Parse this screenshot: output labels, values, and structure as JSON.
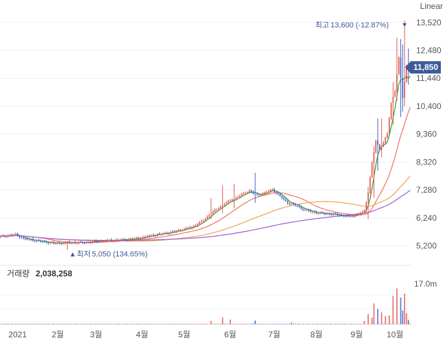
{
  "header": {
    "title_fragment": "",
    "scale_mode": "Linear"
  },
  "annotations": {
    "high_label": "최고",
    "high_value": "13,600 (-12.87%)",
    "low_label": "최저",
    "low_value": "5,050 (134.65%)",
    "current_price": "11,850"
  },
  "volume_panel": {
    "label": "거래량",
    "value": "2,038,258",
    "axis_label": "17.0m"
  },
  "colors": {
    "up": "#e2574c",
    "down": "#3d63c9",
    "ma5": "#2e9c3a",
    "ma20": "#f07060",
    "ma60": "#f0a050",
    "ma120": "#9b5cd6",
    "current_badge": "#3d5a99"
  },
  "chart_data": {
    "type": "candlestick",
    "title": "",
    "y_axis_ticks": [
      13520,
      12480,
      11440,
      10400,
      9360,
      8320,
      7280,
      6240,
      5200
    ],
    "y_axis_tick_labels": [
      "13,520",
      "12,480",
      "11,440",
      "10,400",
      "9,360",
      "8,320",
      "7,280",
      "6,240",
      "5,200"
    ],
    "ylim": [
      4960,
      14000
    ],
    "x_tick_labels": [
      "2021",
      "2월",
      "3월",
      "4월",
      "5월",
      "6월",
      "7월",
      "8월",
      "9월",
      "10월"
    ],
    "x_tick_index": [
      9,
      30,
      50,
      74,
      96,
      120,
      143,
      165,
      186,
      206
    ],
    "num_days": 215,
    "price_anchors": [
      [
        0,
        5550
      ],
      [
        8,
        5620
      ],
      [
        12,
        5470
      ],
      [
        20,
        5380
      ],
      [
        28,
        5300
      ],
      [
        36,
        5320
      ],
      [
        44,
        5330
      ],
      [
        52,
        5380
      ],
      [
        60,
        5410
      ],
      [
        70,
        5460
      ],
      [
        80,
        5600
      ],
      [
        90,
        5720
      ],
      [
        100,
        5900
      ],
      [
        106,
        6150
      ],
      [
        110,
        6420
      ],
      [
        114,
        6620
      ],
      [
        118,
        6820
      ],
      [
        122,
        6950
      ],
      [
        126,
        7120
      ],
      [
        130,
        7250
      ],
      [
        134,
        7080
      ],
      [
        138,
        7180
      ],
      [
        142,
        7300
      ],
      [
        146,
        7050
      ],
      [
        150,
        6800
      ],
      [
        154,
        6720
      ],
      [
        158,
        6560
      ],
      [
        162,
        6480
      ],
      [
        166,
        6420
      ],
      [
        170,
        6400
      ],
      [
        174,
        6380
      ],
      [
        178,
        6330
      ],
      [
        182,
        6300
      ],
      [
        186,
        6360
      ],
      [
        190,
        6500
      ],
      [
        192,
        7200
      ],
      [
        194,
        8300
      ],
      [
        196,
        9100
      ],
      [
        198,
        8800
      ],
      [
        200,
        9050
      ],
      [
        202,
        9400
      ],
      [
        204,
        10500
      ],
      [
        206,
        11000
      ],
      [
        208,
        12200
      ],
      [
        210,
        10700
      ],
      [
        212,
        11900
      ],
      [
        214,
        11850
      ]
    ],
    "highlight_bars": [
      {
        "i": 110,
        "high": 6980,
        "low": 6200
      },
      {
        "i": 116,
        "high": 7450,
        "low": 6420
      },
      {
        "i": 122,
        "high": 7500,
        "low": 6600
      },
      {
        "i": 133,
        "high": 7920,
        "low": 6800
      },
      {
        "i": 192,
        "high": 7400,
        "low": 6200
      },
      {
        "i": 195,
        "high": 8900,
        "low": 7000
      },
      {
        "i": 197,
        "high": 9950,
        "low": 8000
      },
      {
        "i": 199,
        "high": 9950,
        "low": 8500
      },
      {
        "i": 205,
        "high": 11300,
        "low": 9700
      },
      {
        "i": 207,
        "high": 12950,
        "low": 10600
      },
      {
        "i": 209,
        "high": 12900,
        "low": 10000
      },
      {
        "i": 210,
        "high": 12700,
        "low": 10200
      },
      {
        "i": 211,
        "high": 13600,
        "low": 10400
      },
      {
        "i": 213,
        "high": 12550,
        "low": 11200
      }
    ],
    "high": {
      "index": 211,
      "value": 13600
    },
    "low": {
      "index": 35,
      "value": 5050
    },
    "current": 11850,
    "moving_averages": [
      {
        "name": "MA5",
        "period": 5
      },
      {
        "name": "MA20",
        "period": 20
      },
      {
        "name": "MA60",
        "period": 60
      },
      {
        "name": "MA120",
        "period": 120
      }
    ],
    "volume": {
      "max": 17000000,
      "spikes": [
        {
          "i": 110,
          "v": 1500000
        },
        {
          "i": 116,
          "v": 3200000
        },
        {
          "i": 120,
          "v": 2200000
        },
        {
          "i": 133,
          "v": 1800000
        },
        {
          "i": 152,
          "v": 900000
        },
        {
          "i": 190,
          "v": 1600000
        },
        {
          "i": 192,
          "v": 4800000
        },
        {
          "i": 194,
          "v": 3200000
        },
        {
          "i": 195,
          "v": 9800000
        },
        {
          "i": 197,
          "v": 7200000
        },
        {
          "i": 199,
          "v": 5600000
        },
        {
          "i": 201,
          "v": 3800000
        },
        {
          "i": 203,
          "v": 4200000
        },
        {
          "i": 205,
          "v": 13200000
        },
        {
          "i": 207,
          "v": 16800000
        },
        {
          "i": 209,
          "v": 12500000
        },
        {
          "i": 210,
          "v": 6400000
        },
        {
          "i": 211,
          "v": 14300000
        },
        {
          "i": 212,
          "v": 5200000
        },
        {
          "i": 213,
          "v": 2100000
        }
      ]
    }
  }
}
